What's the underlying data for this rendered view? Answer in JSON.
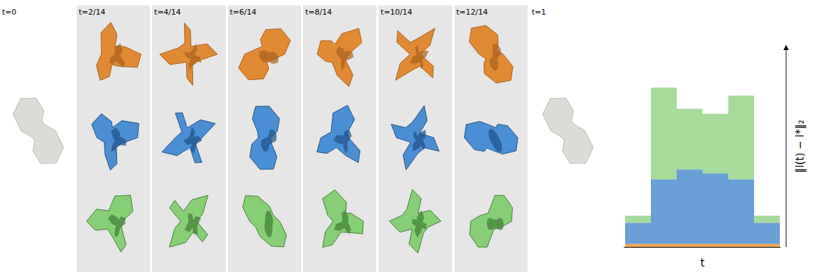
{
  "chart_data": {
    "type": "bar",
    "stacked": true,
    "categories": [
      null,
      null,
      null,
      null,
      null,
      null
    ],
    "series": [
      {
        "color": "#f5a54a",
        "values": [
          0.15,
          0.15,
          0.15,
          0.15,
          0.15,
          0.15
        ]
      },
      {
        "color": "#6a9fd8",
        "values": [
          1.05,
          3.2,
          3.7,
          3.5,
          3.2,
          1.05
        ]
      },
      {
        "color": "#a6db9b",
        "values": [
          0.35,
          4.55,
          3.0,
          2.95,
          4.15,
          0.35
        ]
      }
    ],
    "x_label": "t",
    "y_label": "‖l(t) − l*‖₂",
    "ylim": [
      0,
      10
    ],
    "yticks": [],
    "tick_labels": false,
    "grid": false
  },
  "panels": {
    "time_labels": [
      "t=0",
      "t=2/14",
      "t=4/14",
      "t=6/14",
      "t=8/14",
      "t=10/14",
      "t=12/14",
      "t=1"
    ]
  }
}
